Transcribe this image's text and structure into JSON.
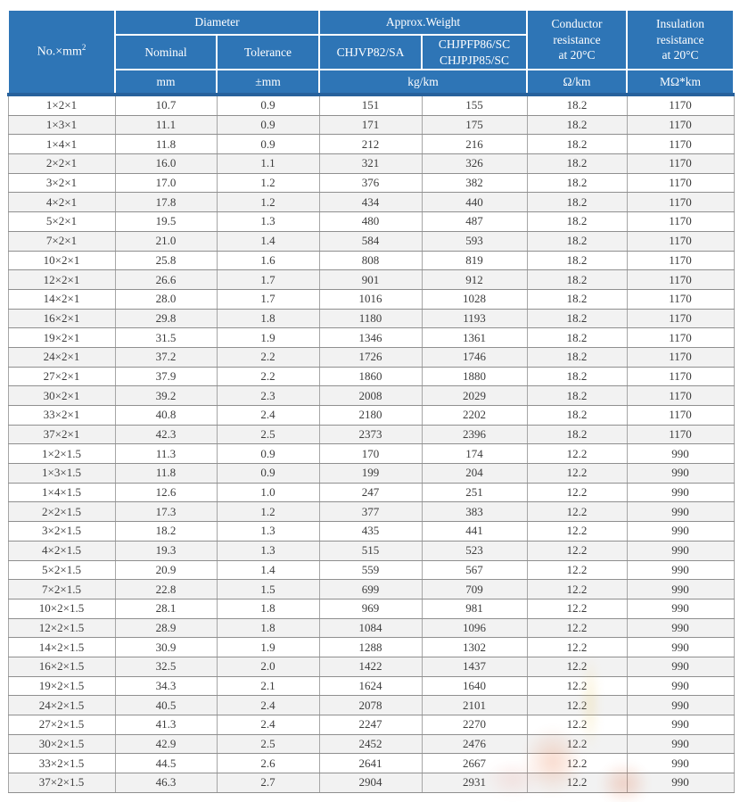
{
  "colors": {
    "header_bg": "#2e75b6",
    "header_text": "#ffffff",
    "header_divider": "#ffffff",
    "header_bottom_line": "#27619c",
    "row_bg": "#ffffff",
    "row_alt_bg": "#f2f2f2",
    "grid_h": "#8f8f8f",
    "grid_v": "#a6a6a6",
    "body_text": "#3c3c3c",
    "watermark_orange": "#e4703c"
  },
  "header": {
    "size_label": "No.×mm",
    "size_sup": "2",
    "diameter": "Diameter",
    "nominal": "Nominal",
    "tolerance": "Tolerance",
    "approx_weight": "Approx.Weight",
    "weight_model_a": "CHJVP82/SA",
    "weight_model_b_lines": [
      "CHJPFP86/SC",
      "CHJPJP85/SC"
    ],
    "conductor_lines": [
      "Conductor",
      "resistance",
      "at 20°C"
    ],
    "insulation_lines": [
      "Insulation",
      "resistance",
      "at 20°C"
    ]
  },
  "units": {
    "diameter_nominal": "mm",
    "diameter_tolerance": "±mm",
    "weight": "kg/km",
    "conductor": "Ω/km",
    "insulation": "MΩ*km"
  },
  "rows": [
    [
      "1×2×1",
      "10.7",
      "0.9",
      "151",
      "155",
      "18.2",
      "1170"
    ],
    [
      "1×3×1",
      "11.1",
      "0.9",
      "171",
      "175",
      "18.2",
      "1170"
    ],
    [
      "1×4×1",
      "11.8",
      "0.9",
      "212",
      "216",
      "18.2",
      "1170"
    ],
    [
      "2×2×1",
      "16.0",
      "1.1",
      "321",
      "326",
      "18.2",
      "1170"
    ],
    [
      "3×2×1",
      "17.0",
      "1.2",
      "376",
      "382",
      "18.2",
      "1170"
    ],
    [
      "4×2×1",
      "17.8",
      "1.2",
      "434",
      "440",
      "18.2",
      "1170"
    ],
    [
      "5×2×1",
      "19.5",
      "1.3",
      "480",
      "487",
      "18.2",
      "1170"
    ],
    [
      "7×2×1",
      "21.0",
      "1.4",
      "584",
      "593",
      "18.2",
      "1170"
    ],
    [
      "10×2×1",
      "25.8",
      "1.6",
      "808",
      "819",
      "18.2",
      "1170"
    ],
    [
      "12×2×1",
      "26.6",
      "1.7",
      "901",
      "912",
      "18.2",
      "1170"
    ],
    [
      "14×2×1",
      "28.0",
      "1.7",
      "1016",
      "1028",
      "18.2",
      "1170"
    ],
    [
      "16×2×1",
      "29.8",
      "1.8",
      "1180",
      "1193",
      "18.2",
      "1170"
    ],
    [
      "19×2×1",
      "31.5",
      "1.9",
      "1346",
      "1361",
      "18.2",
      "1170"
    ],
    [
      "24×2×1",
      "37.2",
      "2.2",
      "1726",
      "1746",
      "18.2",
      "1170"
    ],
    [
      "27×2×1",
      "37.9",
      "2.2",
      "1860",
      "1880",
      "18.2",
      "1170"
    ],
    [
      "30×2×1",
      "39.2",
      "2.3",
      "2008",
      "2029",
      "18.2",
      "1170"
    ],
    [
      "33×2×1",
      "40.8",
      "2.4",
      "2180",
      "2202",
      "18.2",
      "1170"
    ],
    [
      "37×2×1",
      "42.3",
      "2.5",
      "2373",
      "2396",
      "18.2",
      "1170"
    ],
    [
      "1×2×1.5",
      "11.3",
      "0.9",
      "170",
      "174",
      "12.2",
      "990"
    ],
    [
      "1×3×1.5",
      "11.8",
      "0.9",
      "199",
      "204",
      "12.2",
      "990"
    ],
    [
      "1×4×1.5",
      "12.6",
      "1.0",
      "247",
      "251",
      "12.2",
      "990"
    ],
    [
      "2×2×1.5",
      "17.3",
      "1.2",
      "377",
      "383",
      "12.2",
      "990"
    ],
    [
      "3×2×1.5",
      "18.2",
      "1.3",
      "435",
      "441",
      "12.2",
      "990"
    ],
    [
      "4×2×1.5",
      "19.3",
      "1.3",
      "515",
      "523",
      "12.2",
      "990"
    ],
    [
      "5×2×1.5",
      "20.9",
      "1.4",
      "559",
      "567",
      "12.2",
      "990"
    ],
    [
      "7×2×1.5",
      "22.8",
      "1.5",
      "699",
      "709",
      "12.2",
      "990"
    ],
    [
      "10×2×1.5",
      "28.1",
      "1.8",
      "969",
      "981",
      "12.2",
      "990"
    ],
    [
      "12×2×1.5",
      "28.9",
      "1.8",
      "1084",
      "1096",
      "12.2",
      "990"
    ],
    [
      "14×2×1.5",
      "30.9",
      "1.9",
      "1288",
      "1302",
      "12.2",
      "990"
    ],
    [
      "16×2×1.5",
      "32.5",
      "2.0",
      "1422",
      "1437",
      "12.2",
      "990"
    ],
    [
      "19×2×1.5",
      "34.3",
      "2.1",
      "1624",
      "1640",
      "12.2",
      "990"
    ],
    [
      "24×2×1.5",
      "40.5",
      "2.4",
      "2078",
      "2101",
      "12.2",
      "990"
    ],
    [
      "27×2×1.5",
      "41.3",
      "2.4",
      "2247",
      "2270",
      "12.2",
      "990"
    ],
    [
      "30×2×1.5",
      "42.9",
      "2.5",
      "2452",
      "2476",
      "12.2",
      "990"
    ],
    [
      "33×2×1.5",
      "44.5",
      "2.6",
      "2641",
      "2667",
      "12.2",
      "990"
    ],
    [
      "37×2×1.5",
      "46.3",
      "2.7",
      "2904",
      "2931",
      "12.2",
      "990"
    ]
  ]
}
